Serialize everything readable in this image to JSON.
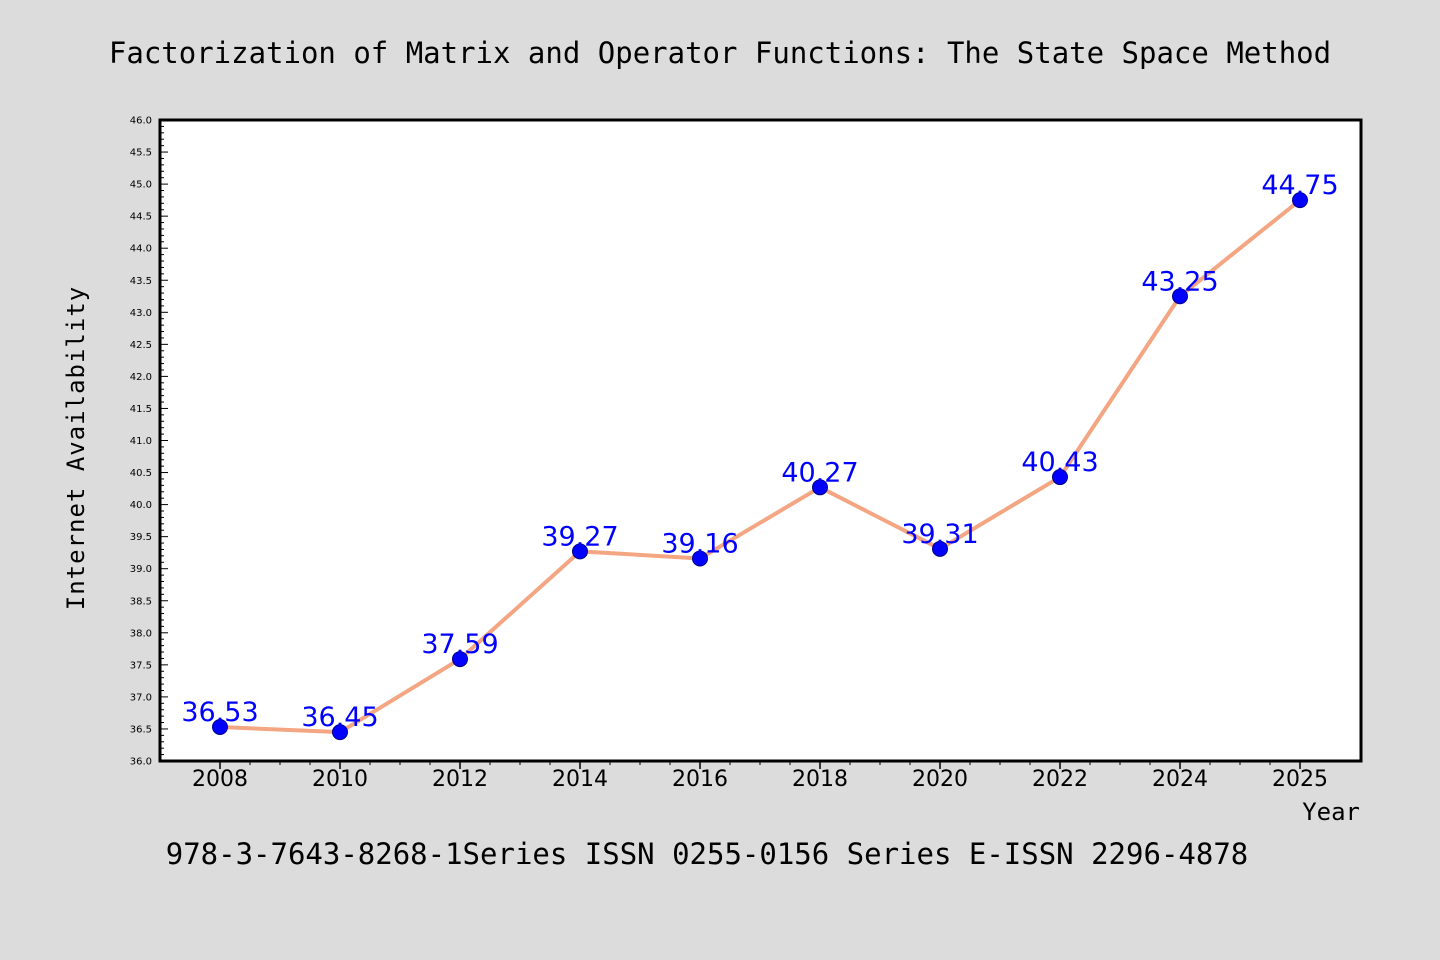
{
  "page": {
    "title": "Factorization of Matrix and Operator Functions: The State Space Method",
    "footer": "978-3-7643-8268-1Series ISSN 0255-0156 Series E-ISSN 2296-4878"
  },
  "colors": {
    "background": "#dcdcdc",
    "plot_background": "#ffffff",
    "line": "#f4a582",
    "marker": "#0000ff",
    "data_label": "#0000ff",
    "text": "#000000"
  },
  "chart_data": {
    "type": "line",
    "title": "Factorization of Matrix and Operator Functions: The State Space Method",
    "xlabel": "Year",
    "ylabel": "Internet Availability",
    "categories": [
      "2008",
      "2010",
      "2012",
      "2014",
      "2016",
      "2018",
      "2020",
      "2022",
      "2024",
      "2025"
    ],
    "series": [
      {
        "values": [
          36.53,
          36.45,
          37.59,
          39.27,
          39.16,
          40.27,
          39.31,
          40.43,
          43.25,
          44.75
        ],
        "data_labels": [
          "36.53",
          "36.45",
          "37.59",
          "39.27",
          "39.16",
          "40.27",
          "39.31",
          "40.43",
          "43.25",
          "44.75"
        ]
      }
    ],
    "ylim": [
      36.0,
      46.0
    ],
    "y_ticks": [
      "36.0",
      "36.5",
      "37.0",
      "37.5",
      "38.0",
      "38.5",
      "39.0",
      "39.5",
      "40.0",
      "40.5",
      "41.0",
      "41.5",
      "42.0",
      "42.5",
      "43.0",
      "43.5",
      "44.0",
      "44.5",
      "45.0",
      "45.5",
      "46.0"
    ],
    "grid": false,
    "legend": "none"
  }
}
